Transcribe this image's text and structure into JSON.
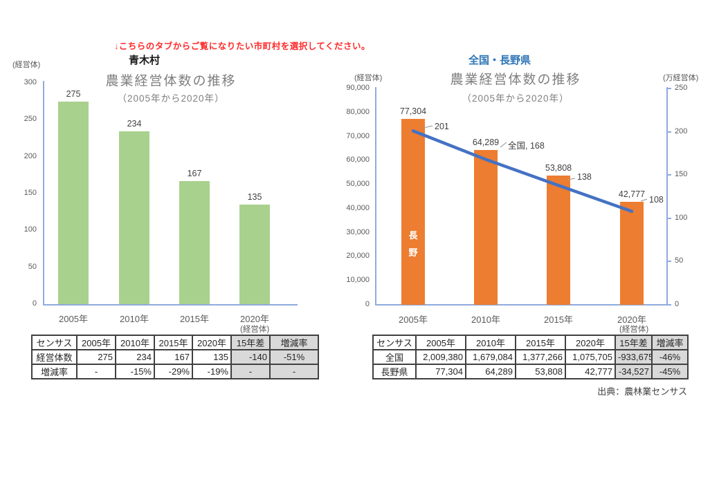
{
  "note": "↓こちらのタブからご覧になりたい市町村を選択してください。",
  "colors": {
    "green_bar": "#a9d18e",
    "orange_bar": "#ed7d31",
    "line_blue": "#4472c4",
    "axis_blue": "#8faadc",
    "title_gray": "#7f7f7f",
    "heading_blue": "#2e75b6",
    "note_red": "#ff2a2a",
    "negative_red": "#e05f5f",
    "cell_gray": "#d9d9d9"
  },
  "chart_data": [
    {
      "id": "aoki-village",
      "type": "bar",
      "region_label": "青木村",
      "title": "農業経営体数の推移",
      "subtitle": "（2005年から2020年）",
      "y_unit": "(経営体)",
      "categories": [
        "2005年",
        "2010年",
        "2015年",
        "2020年"
      ],
      "values": [
        275,
        234,
        167,
        135
      ],
      "value_labels": [
        "275",
        "234",
        "167",
        "135"
      ],
      "bar_color": "#a9d18e",
      "ylim": [
        0,
        300
      ],
      "yticks": [
        "300",
        "250",
        "200",
        "150",
        "100",
        "50",
        "0"
      ],
      "grid": false,
      "legend": "none"
    },
    {
      "id": "national-nagano",
      "type": "bar+line",
      "region_label": "全国・長野県",
      "title": "農業経営体数の推移",
      "subtitle": "（2005年から2020年）",
      "y_unit_left": "(経営体)",
      "y_unit_right": "(万経営体)",
      "categories": [
        "2005年",
        "2010年",
        "2015年",
        "2020年"
      ],
      "series": [
        {
          "name": "長野",
          "type": "bar",
          "axis": "left",
          "values": [
            77304,
            64289,
            53808,
            42777
          ],
          "value_labels": [
            "77,304",
            "64,289",
            "53,808",
            "42,777"
          ],
          "color": "#ed7d31"
        },
        {
          "name": "全国",
          "type": "line",
          "axis": "right",
          "values": [
            201,
            168,
            138,
            108
          ],
          "value_labels": [
            "201",
            "全国, 168",
            "138",
            "108"
          ],
          "color": "#4472c4"
        }
      ],
      "bar_inner_label": "長\n野",
      "ylim_left": [
        0,
        90000
      ],
      "yticks_left": [
        "90,000",
        "80,000",
        "70,000",
        "60,000",
        "50,000",
        "40,000",
        "30,000",
        "20,000",
        "10,000",
        "0"
      ],
      "ylim_right": [
        0,
        250
      ],
      "yticks_right": [
        "250",
        "200",
        "150",
        "100",
        "50",
        "0"
      ],
      "grid": false,
      "legend": "none"
    }
  ],
  "tables": [
    {
      "unit": "(経営体)",
      "headers": [
        "センサス",
        "2005年",
        "2010年",
        "2015年",
        "2020年",
        "15年差",
        "増減率"
      ],
      "rows": [
        {
          "label": "経営体数",
          "cells": [
            "275",
            "234",
            "167",
            "135",
            "-140",
            "-51%"
          ]
        },
        {
          "label": "増減率",
          "cells": [
            "-",
            "-15%",
            "-29%",
            "-19%",
            "-",
            "-"
          ]
        }
      ]
    },
    {
      "unit": "(経営体)",
      "headers": [
        "センサス",
        "2005年",
        "2010年",
        "2015年",
        "2020年",
        "15年差",
        "増減率"
      ],
      "rows": [
        {
          "label": "全国",
          "cells": [
            "2,009,380",
            "1,679,084",
            "1,377,266",
            "1,075,705",
            "-933,675",
            "-46%"
          ]
        },
        {
          "label": "長野県",
          "cells": [
            "77,304",
            "64,289",
            "53,808",
            "42,777",
            "-34,527",
            "-45%"
          ]
        }
      ],
      "source": "出典：農林業センサス"
    }
  ]
}
